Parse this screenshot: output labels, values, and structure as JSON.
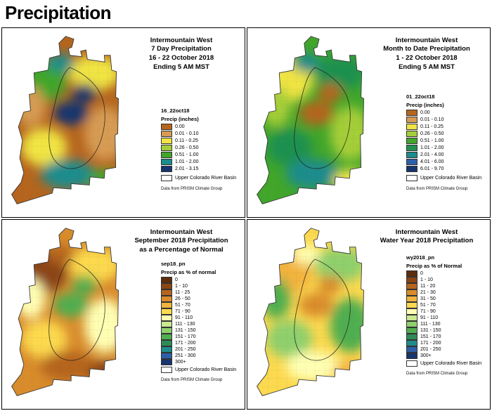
{
  "page": {
    "title": "Precipitation"
  },
  "basin_color": "#ffffff",
  "panels": [
    {
      "title_lines": [
        "Intermountain West",
        "7 Day Precipitation",
        "16 - 22 October 2018",
        "Ending 5 AM MST"
      ],
      "legend_name": "16_22oct18",
      "legend_title": "Precip (inches)",
      "legend": [
        {
          "label": "0.00",
          "color": "#B5651D"
        },
        {
          "label": "0.01 - 0.10",
          "color": "#D79B53"
        },
        {
          "label": "0.11 - 0.25",
          "color": "#F0E442"
        },
        {
          "label": "0.26 - 0.50",
          "color": "#A4CE39"
        },
        {
          "label": "0.51 - 1.00",
          "color": "#41A62A"
        },
        {
          "label": "1.01 - 2.00",
          "color": "#1B8C8C"
        },
        {
          "label": "2.01 - 3.15",
          "color": "#16356E"
        }
      ],
      "basin_label": "Upper Colorado River Basin",
      "source_note": "Data from PRISM Climate Group",
      "map_colors": [
        "#B5651D",
        "#41A62A",
        "#F0E442",
        "#16356E",
        "#D79B53",
        "#1B8C8C"
      ]
    },
    {
      "title_lines": [
        "Intermountain West",
        "Month to Date Precipitation",
        "1 - 22 October 2018",
        "Ending 5 AM MST"
      ],
      "legend_name": "01_22oct18",
      "legend_title": "Precip (inches)",
      "legend": [
        {
          "label": "0.00",
          "color": "#B5651D"
        },
        {
          "label": "0.01 - 0.10",
          "color": "#D79B53"
        },
        {
          "label": "0.11 - 0.25",
          "color": "#F0E442"
        },
        {
          "label": "0.26 - 0.50",
          "color": "#A4CE39"
        },
        {
          "label": "0.51 - 1.00",
          "color": "#41A62A"
        },
        {
          "label": "1.01 - 2.00",
          "color": "#1E9150"
        },
        {
          "label": "2.01 - 4.00",
          "color": "#1B8C8C"
        },
        {
          "label": "4.01 - 6.00",
          "color": "#2B5FA8"
        },
        {
          "label": "6.01 - 9.70",
          "color": "#16356E"
        }
      ],
      "basin_label": "Upper Colorado River Basin",
      "source_note": "Data from PRISM Climate Group",
      "map_colors": [
        "#41A62A",
        "#F0E442",
        "#1E9150",
        "#B5651D",
        "#A4CE39",
        "#1B8C8C"
      ]
    },
    {
      "title_lines": [
        "Intermountain West",
        "September 2018 Precipitation",
        "as a Percentage of Normal"
      ],
      "legend_name": "sep18_pn",
      "legend_title": "Precip as % of normal",
      "legend": [
        {
          "label": "0",
          "color": "#5C2E0D"
        },
        {
          "label": "1 - 10",
          "color": "#8B4513"
        },
        {
          "label": "11 - 25",
          "color": "#B5651D"
        },
        {
          "label": "26 - 50",
          "color": "#D98C2B"
        },
        {
          "label": "51 - 70",
          "color": "#F2B33D"
        },
        {
          "label": "71 - 90",
          "color": "#FCD94E"
        },
        {
          "label": "91 - 110",
          "color": "#FFFFB3"
        },
        {
          "label": "111 - 130",
          "color": "#C9E88F"
        },
        {
          "label": "131 - 150",
          "color": "#8FD06C"
        },
        {
          "label": "151 - 170",
          "color": "#4FAE4F"
        },
        {
          "label": "171 - 200",
          "color": "#2E8B57"
        },
        {
          "label": "201 - 250",
          "color": "#1F8C8C"
        },
        {
          "label": "251 - 300",
          "color": "#2B5FA8"
        },
        {
          "label": "300+",
          "color": "#16356E"
        }
      ],
      "basin_label": "Upper Colorado River Basin",
      "source_note": "Data from PRISM Climate Group",
      "map_colors": [
        "#D98C2B",
        "#8B4513",
        "#FCD94E",
        "#4FAE4F",
        "#FFFFB3",
        "#B5651D"
      ]
    },
    {
      "title_lines": [
        "Intermountain West",
        "Water Year 2018 Precipitation"
      ],
      "legend_name": "wy2018_pn",
      "legend_title": "Precip as % of Normal",
      "legend": [
        {
          "label": "0",
          "color": "#5C2E0D"
        },
        {
          "label": "1 - 10",
          "color": "#8B4513"
        },
        {
          "label": "11 - 20",
          "color": "#B5651D"
        },
        {
          "label": "21 - 30",
          "color": "#D98C2B"
        },
        {
          "label": "31 - 50",
          "color": "#F2B33D"
        },
        {
          "label": "51 - 70",
          "color": "#FCD94E"
        },
        {
          "label": "71 - 90",
          "color": "#FFFFB3"
        },
        {
          "label": "91 - 110",
          "color": "#C9E88F"
        },
        {
          "label": "111 - 130",
          "color": "#8FD06C"
        },
        {
          "label": "131 - 150",
          "color": "#4FAE4F"
        },
        {
          "label": "151 - 170",
          "color": "#2E8B57"
        },
        {
          "label": "171 - 200",
          "color": "#1F8C8C"
        },
        {
          "label": "201 - 250",
          "color": "#2B5FA8"
        },
        {
          "label": "300+",
          "color": "#16356E"
        }
      ],
      "basin_label": "Upper Colorado River Basin",
      "source_note": "Data from PRISM Climate Group",
      "map_colors": [
        "#FCD94E",
        "#F2B33D",
        "#8FD06C",
        "#D98C2B",
        "#4FAE4F",
        "#FFFFB3"
      ]
    }
  ]
}
